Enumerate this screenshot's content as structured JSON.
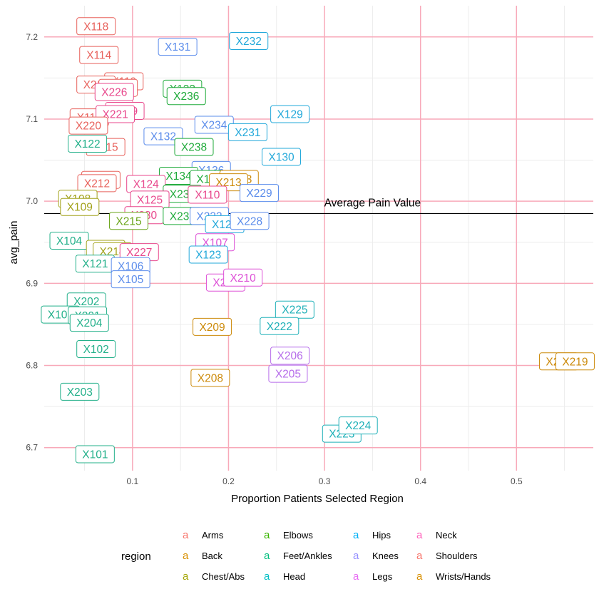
{
  "chart_data": {
    "type": "scatter",
    "xlabel": "Proportion Patients Selected Region",
    "ylabel": "avg_pain",
    "xlim": [
      0.008,
      0.58
    ],
    "ylim": [
      6.672,
      7.238
    ],
    "x_ticks": [
      0.1,
      0.2,
      0.3,
      0.4,
      0.5
    ],
    "x_tick_labels": [
      "0.1",
      "0.2",
      "0.3",
      "0.4",
      "0.5"
    ],
    "y_ticks": [
      6.7,
      6.8,
      6.9,
      7.0,
      7.1,
      7.2
    ],
    "y_tick_labels": [
      "6.7",
      "6.8",
      "6.9",
      "7.0",
      "7.1",
      "7.2"
    ],
    "grid": true,
    "legend_position": "bottom",
    "legend_title": "region",
    "legend_key_glyph": "a",
    "legend": [
      {
        "name": "Arms",
        "color": "#F8766D"
      },
      {
        "name": "Back",
        "color": "#D89000"
      },
      {
        "name": "Chest/Abs",
        "color": "#A3A500"
      },
      {
        "name": "Elbows",
        "color": "#39B600"
      },
      {
        "name": "Feet/Ankles",
        "color": "#00BF7D"
      },
      {
        "name": "Head",
        "color": "#00BFC4"
      },
      {
        "name": "Hips",
        "color": "#00B0F6"
      },
      {
        "name": "Knees",
        "color": "#9590FF"
      },
      {
        "name": "Legs",
        "color": "#E76BF3"
      },
      {
        "name": "Neck",
        "color": "#FF62BC"
      },
      {
        "name": "Shoulders",
        "color": "#F8766D"
      },
      {
        "name": "Wrists/Hands",
        "color": "#D89000"
      }
    ],
    "label_colors": {
      "Arms": "#E8625C",
      "Back": "#CC8A0A",
      "Chest/Abs": "#A2A21A",
      "Elbows": "#6AA51A",
      "Feet/Ankles": "#1FAA3A",
      "Head": "#23B08A",
      "Hips": "#1FB0B8",
      "Knees": "#22A8DA",
      "Legs": "#5B8CEB",
      "Neck": "#B66CEA",
      "Shoulders": "#DD50D6",
      "Wrists/Hands": "#E8478C"
    },
    "reference_line": {
      "y": 6.985,
      "label": "Average Pain Value"
    },
    "points": [
      {
        "label": "X118",
        "x": 0.062,
        "y": 7.213,
        "region": "Arms"
      },
      {
        "label": "X114",
        "x": 0.065,
        "y": 7.178,
        "region": "Arms"
      },
      {
        "label": "X119",
        "x": 0.091,
        "y": 7.146,
        "region": "Arms"
      },
      {
        "label": "X217",
        "x": 0.062,
        "y": 7.142,
        "region": "Arms"
      },
      {
        "label": "X218",
        "x": 0.085,
        "y": 7.138,
        "region": "Arms"
      },
      {
        "label": "X226",
        "x": 0.081,
        "y": 7.133,
        "region": "Wrists/Hands"
      },
      {
        "label": "X219",
        "x": 0.092,
        "y": 7.11,
        "region": "Wrists/Hands"
      },
      {
        "label": "X116",
        "x": 0.055,
        "y": 7.102,
        "region": "Arms"
      },
      {
        "label": "X221",
        "x": 0.082,
        "y": 7.106,
        "region": "Wrists/Hands"
      },
      {
        "label": "X220",
        "x": 0.054,
        "y": 7.092,
        "region": "Arms"
      },
      {
        "label": "X115",
        "x": 0.072,
        "y": 7.066,
        "region": "Arms"
      },
      {
        "label": "X122",
        "x": 0.053,
        "y": 7.07,
        "region": "Head"
      },
      {
        "label": "X211",
        "x": 0.067,
        "y": 7.026,
        "region": "Arms"
      },
      {
        "label": "X212",
        "x": 0.063,
        "y": 7.022,
        "region": "Arms"
      },
      {
        "label": "X108",
        "x": 0.043,
        "y": 7.003,
        "region": "Chest/Abs"
      },
      {
        "label": "X109",
        "x": 0.045,
        "y": 6.993,
        "region": "Chest/Abs"
      },
      {
        "label": "X104",
        "x": 0.034,
        "y": 6.952,
        "region": "Head"
      },
      {
        "label": "X212",
        "x": 0.072,
        "y": 6.942,
        "region": "Chest/Abs"
      },
      {
        "label": "X214",
        "x": 0.079,
        "y": 6.939,
        "region": "Chest/Abs"
      },
      {
        "label": "X227",
        "x": 0.107,
        "y": 6.938,
        "region": "Wrists/Hands"
      },
      {
        "label": "X121",
        "x": 0.061,
        "y": 6.924,
        "region": "Head"
      },
      {
        "label": "X106",
        "x": 0.098,
        "y": 6.921,
        "region": "Legs"
      },
      {
        "label": "X105",
        "x": 0.098,
        "y": 6.905,
        "region": "Legs"
      },
      {
        "label": "X202",
        "x": 0.052,
        "y": 6.878,
        "region": "Head"
      },
      {
        "label": "X101",
        "x": 0.025,
        "y": 6.862,
        "region": "Head"
      },
      {
        "label": "X201",
        "x": 0.053,
        "y": 6.861,
        "region": "Head"
      },
      {
        "label": "X204",
        "x": 0.055,
        "y": 6.852,
        "region": "Head"
      },
      {
        "label": "X102",
        "x": 0.062,
        "y": 6.82,
        "region": "Head"
      },
      {
        "label": "X203",
        "x": 0.045,
        "y": 6.768,
        "region": "Head"
      },
      {
        "label": "X101",
        "x": 0.061,
        "y": 6.692,
        "region": "Head"
      },
      {
        "label": "X131",
        "x": 0.147,
        "y": 7.188,
        "region": "Legs"
      },
      {
        "label": "X232",
        "x": 0.221,
        "y": 7.195,
        "region": "Knees"
      },
      {
        "label": "X133",
        "x": 0.152,
        "y": 7.137,
        "region": "Feet/Ankles"
      },
      {
        "label": "X236",
        "x": 0.156,
        "y": 7.128,
        "region": "Feet/Ankles"
      },
      {
        "label": "X129",
        "x": 0.264,
        "y": 7.106,
        "region": "Knees"
      },
      {
        "label": "X234",
        "x": 0.185,
        "y": 7.093,
        "region": "Legs"
      },
      {
        "label": "X231",
        "x": 0.22,
        "y": 7.084,
        "region": "Knees"
      },
      {
        "label": "X132",
        "x": 0.132,
        "y": 7.079,
        "region": "Legs"
      },
      {
        "label": "X238",
        "x": 0.164,
        "y": 7.066,
        "region": "Feet/Ankles"
      },
      {
        "label": "X130",
        "x": 0.255,
        "y": 7.054,
        "region": "Knees"
      },
      {
        "label": "X136",
        "x": 0.182,
        "y": 7.038,
        "region": "Legs"
      },
      {
        "label": "X134",
        "x": 0.148,
        "y": 7.031,
        "region": "Feet/Ankles"
      },
      {
        "label": "X135",
        "x": 0.18,
        "y": 7.027,
        "region": "Feet/Ankles"
      },
      {
        "label": "X213",
        "x": 0.211,
        "y": 7.027,
        "region": "Back"
      },
      {
        "label": "X213",
        "x": 0.2,
        "y": 7.023,
        "region": "Back"
      },
      {
        "label": "X124",
        "x": 0.114,
        "y": 7.021,
        "region": "Wrists/Hands"
      },
      {
        "label": "X235",
        "x": 0.152,
        "y": 7.009,
        "region": "Feet/Ankles"
      },
      {
        "label": "X110",
        "x": 0.178,
        "y": 7.008,
        "region": "Wrists/Hands"
      },
      {
        "label": "X229",
        "x": 0.232,
        "y": 7.01,
        "region": "Legs"
      },
      {
        "label": "X125",
        "x": 0.118,
        "y": 7.002,
        "region": "Wrists/Hands"
      },
      {
        "label": "X230",
        "x": 0.112,
        "y": 6.983,
        "region": "Wrists/Hands"
      },
      {
        "label": "X215",
        "x": 0.096,
        "y": 6.976,
        "region": "Elbows"
      },
      {
        "label": "X237",
        "x": 0.152,
        "y": 6.982,
        "region": "Feet/Ankles"
      },
      {
        "label": "X233",
        "x": 0.18,
        "y": 6.982,
        "region": "Legs"
      },
      {
        "label": "X126",
        "x": 0.196,
        "y": 6.972,
        "region": "Knees"
      },
      {
        "label": "X228",
        "x": 0.222,
        "y": 6.976,
        "region": "Legs"
      },
      {
        "label": "X107",
        "x": 0.186,
        "y": 6.95,
        "region": "Shoulders"
      },
      {
        "label": "X123",
        "x": 0.179,
        "y": 6.935,
        "region": "Knees"
      },
      {
        "label": "X207",
        "x": 0.197,
        "y": 6.901,
        "region": "Shoulders"
      },
      {
        "label": "X210",
        "x": 0.215,
        "y": 6.907,
        "region": "Shoulders"
      },
      {
        "label": "X225",
        "x": 0.269,
        "y": 6.868,
        "region": "Hips"
      },
      {
        "label": "X222",
        "x": 0.253,
        "y": 6.848,
        "region": "Hips"
      },
      {
        "label": "X209",
        "x": 0.183,
        "y": 6.847,
        "region": "Back"
      },
      {
        "label": "X206",
        "x": 0.264,
        "y": 6.812,
        "region": "Neck"
      },
      {
        "label": "X205",
        "x": 0.262,
        "y": 6.79,
        "region": "Neck"
      },
      {
        "label": "X208",
        "x": 0.181,
        "y": 6.785,
        "region": "Back"
      },
      {
        "label": "X218",
        "x": 0.544,
        "y": 6.805,
        "region": "Back"
      },
      {
        "label": "X219",
        "x": 0.561,
        "y": 6.805,
        "region": "Back"
      },
      {
        "label": "X223",
        "x": 0.318,
        "y": 6.717,
        "region": "Hips"
      },
      {
        "label": "X224",
        "x": 0.335,
        "y": 6.727,
        "region": "Hips"
      }
    ]
  }
}
